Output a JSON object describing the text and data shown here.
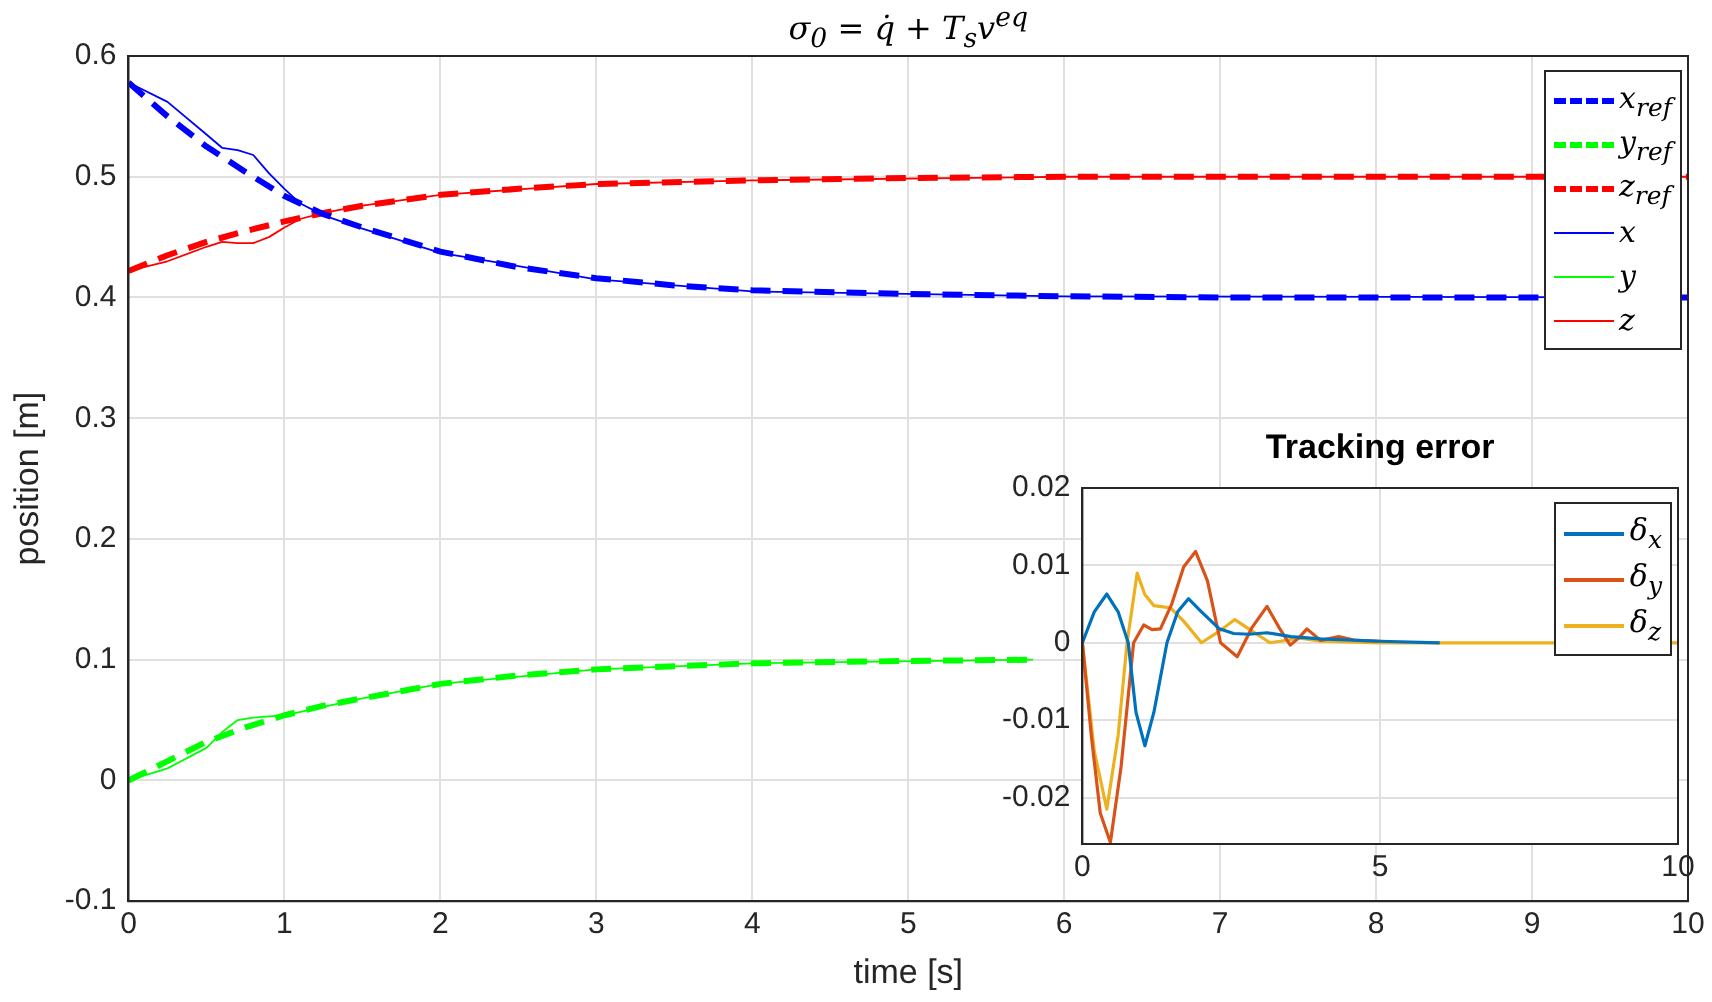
{
  "chart_data": [
    {
      "type": "line",
      "title": "σ$_{0}$ = q̇ + T$_{s}$v$^{eq}$",
      "xlabel": "time [s]",
      "ylabel": "position [m]",
      "xlim": [
        0,
        10
      ],
      "ylim": [
        -0.1,
        0.6
      ],
      "xticks": [
        0,
        1,
        2,
        3,
        4,
        5,
        6,
        7,
        8,
        9,
        10
      ],
      "yticks": [
        -0.1,
        0,
        0.1,
        0.2,
        0.3,
        0.4,
        0.5,
        0.6
      ],
      "grid": true,
      "legend": "top right",
      "marker": "none",
      "series": [
        {
          "name": "x$_{ref}$",
          "color": "#0000ff",
          "line_style": "dashed",
          "x": [
            0,
            0.25,
            0.5,
            0.75,
            1,
            1.25,
            1.5,
            2,
            2.5,
            3,
            3.5,
            4,
            5,
            6,
            7,
            8,
            10
          ],
          "values": [
            0.578,
            0.55,
            0.525,
            0.504,
            0.484,
            0.469,
            0.458,
            0.438,
            0.425,
            0.416,
            0.41,
            0.406,
            0.403,
            0.401,
            0.4,
            0.4,
            0.4
          ]
        },
        {
          "name": "y$_{ref}$",
          "color": "#00ff00",
          "line_style": "dashed",
          "x": [
            0,
            0.25,
            0.5,
            0.75,
            1,
            1.25,
            1.5,
            2,
            2.5,
            3,
            4,
            5,
            5.8
          ],
          "values": [
            0,
            0.016,
            0.032,
            0.044,
            0.054,
            0.062,
            0.068,
            0.08,
            0.087,
            0.092,
            0.097,
            0.099,
            0.1
          ]
        },
        {
          "name": "z$_{ref}$",
          "color": "#ff0000",
          "line_style": "dashed",
          "x": [
            0,
            0.25,
            0.5,
            0.75,
            1,
            1.25,
            1.5,
            2,
            2.5,
            3,
            4,
            5,
            6,
            8,
            10
          ],
          "values": [
            0.422,
            0.435,
            0.446,
            0.455,
            0.463,
            0.47,
            0.476,
            0.485,
            0.49,
            0.494,
            0.497,
            0.499,
            0.5,
            0.5,
            0.5
          ]
        },
        {
          "name": "x",
          "color": "#0000ff",
          "line_style": "solid",
          "x": [
            0,
            0.25,
            0.5,
            0.6,
            0.7,
            0.8,
            0.9,
            1,
            1.1,
            1.25,
            1.5,
            2,
            3,
            4,
            6,
            10
          ],
          "values": [
            0.578,
            0.562,
            0.535,
            0.524,
            0.522,
            0.518,
            0.503,
            0.49,
            0.478,
            0.468,
            0.457,
            0.437,
            0.415,
            0.405,
            0.401,
            0.4
          ]
        },
        {
          "name": "y",
          "color": "#00ff00",
          "line_style": "solid",
          "x": [
            0,
            0.25,
            0.5,
            0.6,
            0.7,
            0.8,
            0.9,
            1,
            1.25,
            1.5,
            2,
            3,
            4,
            5.8
          ],
          "values": [
            0,
            0.01,
            0.027,
            0.04,
            0.05,
            0.052,
            0.053,
            0.054,
            0.061,
            0.068,
            0.08,
            0.092,
            0.097,
            0.1
          ]
        },
        {
          "name": "z",
          "color": "#ff0000",
          "line_style": "solid",
          "x": [
            0,
            0.25,
            0.5,
            0.6,
            0.7,
            0.8,
            0.9,
            1,
            1.1,
            1.25,
            1.5,
            2,
            3,
            4,
            6,
            10
          ],
          "values": [
            0.422,
            0.43,
            0.442,
            0.446,
            0.445,
            0.445,
            0.45,
            0.458,
            0.465,
            0.47,
            0.476,
            0.485,
            0.494,
            0.497,
            0.5,
            0.5
          ]
        }
      ]
    },
    {
      "type": "line",
      "title": "Tracking error",
      "xlim": [
        0,
        10
      ],
      "ylim": [
        -0.026,
        0.02
      ],
      "xticks": [
        0,
        5,
        10
      ],
      "yticks": [
        -0.02,
        -0.01,
        0,
        0.01,
        0.02
      ],
      "grid": true,
      "legend": "top right",
      "marker": "none",
      "line_style": "solid",
      "series": [
        {
          "name": "δ$_{x}$",
          "color": "#0072bd",
          "x": [
            0,
            0.2,
            0.41,
            0.6,
            0.77,
            0.9,
            1.05,
            1.2,
            1.42,
            1.6,
            1.78,
            2,
            2.3,
            2.54,
            2.8,
            3.1,
            3.5,
            4,
            5,
            6
          ],
          "values": [
            0,
            0.004,
            0.0063,
            0.004,
            0,
            -0.009,
            -0.0133,
            -0.009,
            0,
            0.004,
            0.0057,
            0.004,
            0.0018,
            0.0012,
            0.0011,
            0.0013,
            0.0008,
            0.0005,
            0.0002,
            0
          ]
        },
        {
          "name": "δ$_{y}$",
          "color": "#d95319",
          "x": [
            0,
            0.15,
            0.3,
            0.47,
            0.65,
            0.86,
            1.03,
            1.17,
            1.31,
            1.5,
            1.7,
            1.9,
            2.1,
            2.32,
            2.6,
            2.85,
            3.1,
            3.3,
            3.49,
            3.63,
            3.77,
            4,
            4.3,
            4.6,
            5
          ],
          "values": [
            0,
            -0.012,
            -0.022,
            -0.0258,
            -0.016,
            0,
            0.0023,
            0.0017,
            0.0018,
            0.005,
            0.0098,
            0.0118,
            0.008,
            0,
            -0.0018,
            0.002,
            0.0047,
            0.002,
            -0.0003,
            0.0006,
            0.0018,
            0.0003,
            0.0008,
            0.0003,
            0.0002
          ]
        },
        {
          "name": "δ$_{z}$",
          "color": "#edb120",
          "x": [
            0,
            0.2,
            0.41,
            0.6,
            0.75,
            0.92,
            1.05,
            1.2,
            1.48,
            1.7,
            2,
            2.3,
            2.56,
            2.85,
            3.15,
            3.4,
            3.66,
            4,
            5,
            10
          ],
          "values": [
            0,
            -0.014,
            -0.0215,
            -0.012,
            0,
            0.009,
            0.0062,
            0.0048,
            0.0045,
            0.0028,
            0,
            0.0015,
            0.003,
            0.0015,
            0,
            0.0003,
            0.0006,
            0.0002,
            0,
            0
          ]
        }
      ]
    }
  ]
}
